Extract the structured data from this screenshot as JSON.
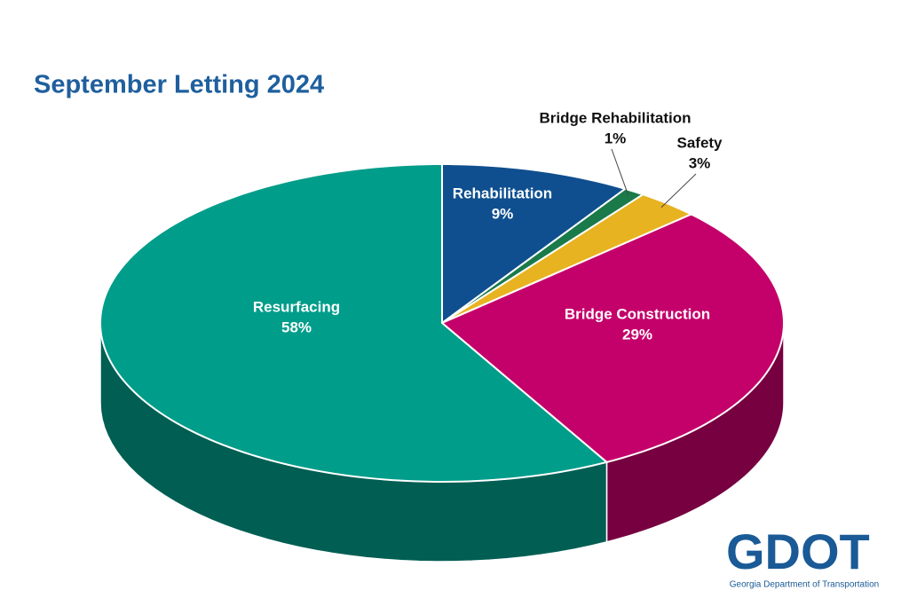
{
  "chart_data": {
    "type": "pie3d",
    "title": "September Letting 2024",
    "categories": [
      "Rehabilitation",
      "Bridge Rehabilitation",
      "Safety",
      "Bridge Construction",
      "Resurfacing"
    ],
    "values": [
      9,
      1,
      3,
      29,
      58
    ],
    "value_labels": [
      "9%",
      "1%",
      "3%",
      "29%",
      "58%"
    ],
    "colors": [
      "#0f4f8f",
      "#1a7a4a",
      "#e8b320",
      "#c4006a",
      "#009d8a"
    ]
  },
  "logo": {
    "name": "GDOT",
    "caption": "Georgia Department of Transportation"
  }
}
